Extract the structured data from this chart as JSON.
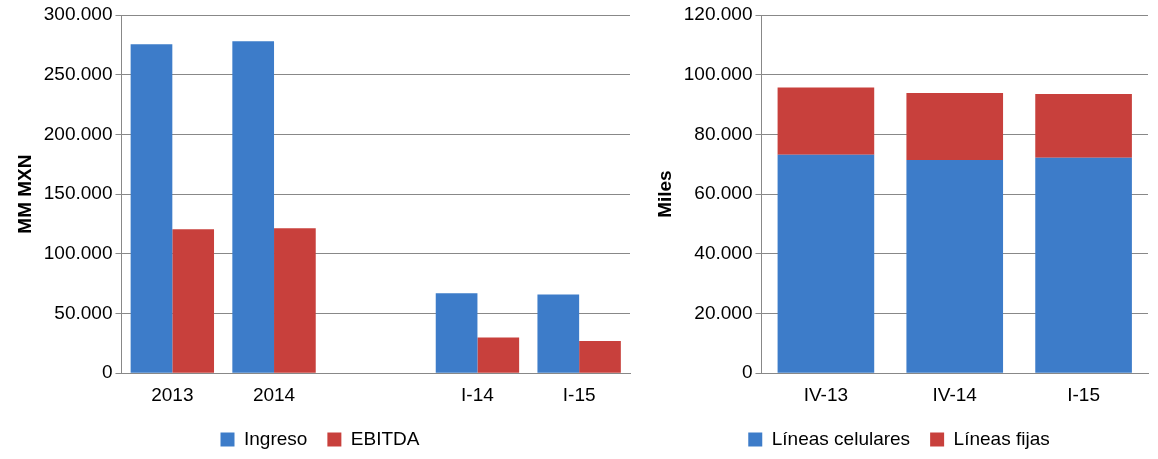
{
  "chart_data": [
    {
      "type": "bar",
      "ylabel": "MM MXN",
      "categories": [
        "2013",
        "2014",
        null,
        "I-14",
        "I-15"
      ],
      "series": [
        {
          "name": "Ingreso",
          "color": "#3d7cc9",
          "values": [
            275600,
            278000,
            null,
            67000,
            66000
          ]
        },
        {
          "name": "EBITDA",
          "color": "#c8403c",
          "values": [
            120600,
            121500,
            null,
            30000,
            27000
          ]
        }
      ],
      "ylim": [
        0,
        300000
      ],
      "yticks": [
        {
          "value": 0,
          "label": "0"
        },
        {
          "value": 50000,
          "label": "50.000"
        },
        {
          "value": 100000,
          "label": "100.000"
        },
        {
          "value": 150000,
          "label": "150.000"
        },
        {
          "value": 200000,
          "label": "200.000"
        },
        {
          "value": 250000,
          "label": "250.000"
        },
        {
          "value": 300000,
          "label": "300.000"
        }
      ],
      "grid": "y",
      "legend": "bottom"
    },
    {
      "type": "bar",
      "ylabel": "Miles",
      "categories": [
        "IV-13",
        "IV-14",
        "I-15"
      ],
      "stacked": true,
      "series": [
        {
          "name": "Líneas celulares",
          "color": "#3d7cc9",
          "values": [
            73200,
            71400,
            72200
          ]
        },
        {
          "name": "Líneas fijas",
          "color": "#c8403c",
          "values": [
            22500,
            22500,
            21300
          ]
        }
      ],
      "ylim": [
        0,
        120000
      ],
      "yticks": [
        {
          "value": 0,
          "label": "0"
        },
        {
          "value": 20000,
          "label": "20.000"
        },
        {
          "value": 40000,
          "label": "40.000"
        },
        {
          "value": 60000,
          "label": "60.000"
        },
        {
          "value": 80000,
          "label": "80.000"
        },
        {
          "value": 100000,
          "label": "100.000"
        },
        {
          "value": 120000,
          "label": "120.000"
        }
      ],
      "grid": "y",
      "legend": "bottom"
    }
  ]
}
